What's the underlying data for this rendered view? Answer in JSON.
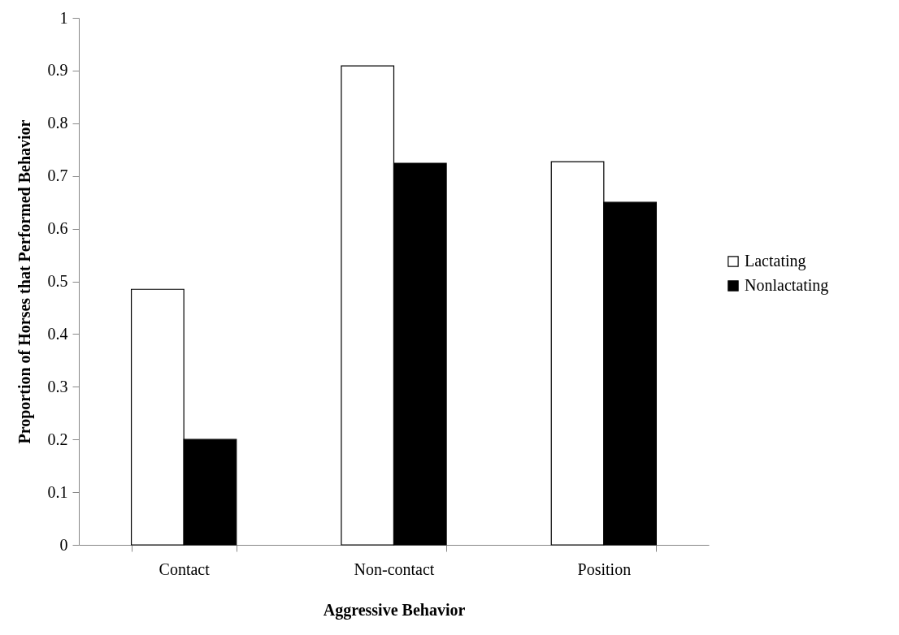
{
  "chart_data": {
    "type": "bar",
    "xlabel": "Aggressive Behavior",
    "ylabel": "Proportion of Horses that Performed Behavior",
    "categories": [
      "Contact",
      "Non-contact",
      "Position"
    ],
    "series": [
      {
        "name": "Lactating",
        "color": "#ffffff",
        "values": [
          0.485,
          0.909,
          0.727
        ]
      },
      {
        "name": "Nonlactating",
        "color": "#000000",
        "values": [
          0.2,
          0.724,
          0.65
        ]
      }
    ],
    "ylim": [
      0,
      1
    ],
    "yticks": [
      0,
      0.1,
      0.2,
      0.3,
      0.4,
      0.5,
      0.6,
      0.7,
      0.8,
      0.9,
      1
    ],
    "grid": false,
    "legend": "right"
  }
}
